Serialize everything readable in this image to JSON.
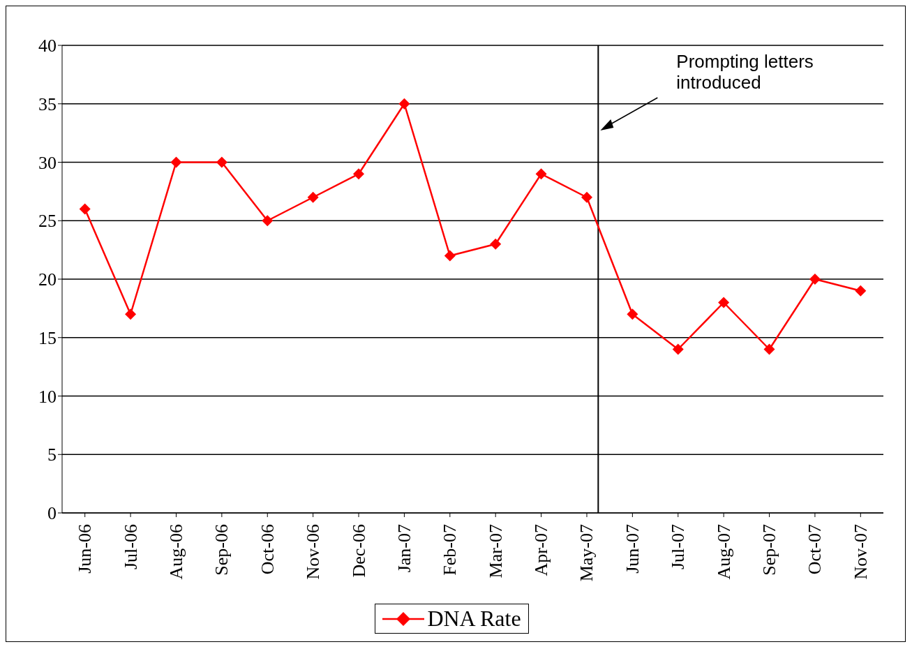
{
  "chart_data": {
    "type": "line",
    "categories": [
      "Jun-06",
      "Jul-06",
      "Aug-06",
      "Sep-06",
      "Oct-06",
      "Nov-06",
      "Dec-06",
      "Jan-07",
      "Feb-07",
      "Mar-07",
      "Apr-07",
      "May-07",
      "Jun-07",
      "Jul-07",
      "Aug-07",
      "Sep-07",
      "Oct-07",
      "Nov-07"
    ],
    "series": [
      {
        "name": "DNA Rate",
        "color": "#ff0000",
        "values": [
          26,
          17,
          30,
          30,
          25,
          27,
          29,
          35,
          22,
          23,
          29,
          27,
          17,
          14,
          18,
          14,
          20,
          19
        ]
      }
    ],
    "ylim": [
      0,
      40
    ],
    "yticks": [
      0,
      5,
      10,
      15,
      20,
      25,
      30,
      35,
      40
    ],
    "grid": "y",
    "legend": "bottom",
    "marker": "diamond",
    "line_style": "solid",
    "ref_lines": [
      {
        "axis": "x",
        "value": "May-07",
        "label": "Prompting letters introduced",
        "color": "#000000"
      }
    ]
  }
}
